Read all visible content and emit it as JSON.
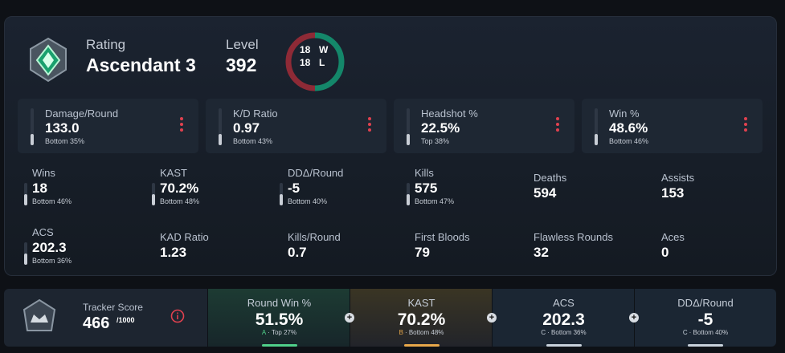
{
  "header": {
    "rating_label": "Rating",
    "rating": "Ascendant 3",
    "level_label": "Level",
    "level": "392",
    "wins": "18",
    "losses": "18",
    "w": "W",
    "l": "L"
  },
  "top_stats": [
    {
      "label": "Damage/Round",
      "value": "133.0",
      "rank": "Bottom 35%"
    },
    {
      "label": "K/D Ratio",
      "value": "0.97",
      "rank": "Bottom 43%"
    },
    {
      "label": "Headshot %",
      "value": "22.5%",
      "rank": "Top 38%"
    },
    {
      "label": "Win %",
      "value": "48.6%",
      "rank": "Bottom 46%"
    }
  ],
  "stats": [
    {
      "label": "Wins",
      "value": "18",
      "rank": "Bottom 46%"
    },
    {
      "label": "KAST",
      "value": "70.2%",
      "rank": "Bottom 48%"
    },
    {
      "label": "DDΔ/Round",
      "value": "-5",
      "rank": "Bottom 40%"
    },
    {
      "label": "Kills",
      "value": "575",
      "rank": "Bottom 47%"
    },
    {
      "label": "Deaths",
      "value": "594"
    },
    {
      "label": "Assists",
      "value": "153"
    },
    {
      "label": "ACS",
      "value": "202.3",
      "rank": "Bottom 36%"
    },
    {
      "label": "KAD Ratio",
      "value": "1.23"
    },
    {
      "label": "Kills/Round",
      "value": "0.7"
    },
    {
      "label": "First Bloods",
      "value": "79"
    },
    {
      "label": "Flawless Rounds",
      "value": "32"
    },
    {
      "label": "Aces",
      "value": "0"
    }
  ],
  "tracker": {
    "label": "Tracker Score",
    "score": "466",
    "max": "/1000"
  },
  "bottom_stats": [
    {
      "label": "Round Win %",
      "value": "51.5%",
      "grade": "A",
      "rank": "· Top 27%"
    },
    {
      "label": "KAST",
      "value": "70.2%",
      "grade": "B",
      "rank": "· Bottom 48%"
    },
    {
      "label": "ACS",
      "value": "202.3",
      "grade": "C",
      "rank": "· Bottom 36%"
    },
    {
      "label": "DDΔ/Round",
      "value": "-5",
      "grade": "C",
      "rank": "· Bottom 40%"
    }
  ]
}
